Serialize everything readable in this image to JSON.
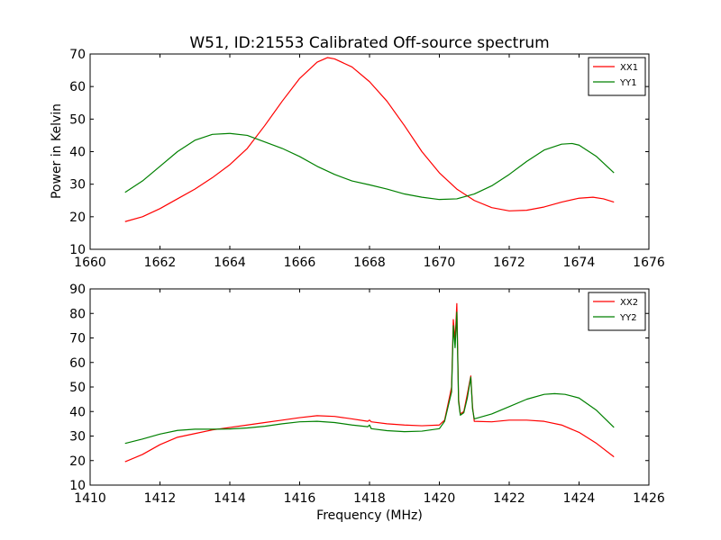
{
  "chart_data": [
    {
      "type": "line",
      "title": "W51, ID:21553 Calibrated Off-source spectrum",
      "xlabel": "",
      "ylabel": "Power in Kelvin",
      "xlim": [
        1660,
        1676
      ],
      "ylim": [
        10,
        70
      ],
      "xticks": [
        "1660",
        "1662",
        "1664",
        "1666",
        "1668",
        "1670",
        "1672",
        "1674",
        "1676"
      ],
      "yticks": [
        "10",
        "20",
        "30",
        "40",
        "50",
        "60",
        "70"
      ],
      "legend_position": "top-right",
      "grid": false,
      "series": [
        {
          "name": "XX1",
          "color": "#ff0000",
          "x": [
            1661.0,
            1661.5,
            1662.0,
            1662.5,
            1663.0,
            1663.5,
            1664.0,
            1664.5,
            1665.0,
            1665.5,
            1666.0,
            1666.5,
            1666.8,
            1667.0,
            1667.5,
            1668.0,
            1668.5,
            1669.0,
            1669.5,
            1670.0,
            1670.5,
            1671.0,
            1671.5,
            1672.0,
            1672.5,
            1673.0,
            1673.5,
            1674.0,
            1674.4,
            1674.7,
            1675.0
          ],
          "y": [
            18.5,
            20.0,
            22.5,
            25.5,
            28.5,
            32.0,
            36.0,
            41.0,
            48.0,
            55.5,
            62.5,
            67.5,
            68.9,
            68.5,
            66.0,
            61.5,
            55.5,
            48.0,
            40.0,
            33.5,
            28.5,
            25.0,
            22.8,
            21.8,
            22.0,
            23.0,
            24.5,
            25.7,
            26.0,
            25.5,
            24.5
          ]
        },
        {
          "name": "YY1",
          "color": "#008000",
          "x": [
            1661.0,
            1661.5,
            1662.0,
            1662.5,
            1663.0,
            1663.5,
            1664.0,
            1664.5,
            1665.0,
            1665.5,
            1666.0,
            1666.5,
            1667.0,
            1667.5,
            1668.0,
            1668.5,
            1669.0,
            1669.5,
            1670.0,
            1670.5,
            1671.0,
            1671.5,
            1672.0,
            1672.5,
            1673.0,
            1673.5,
            1673.8,
            1674.0,
            1674.5,
            1675.0
          ],
          "y": [
            27.5,
            31.0,
            35.5,
            40.0,
            43.5,
            45.3,
            45.6,
            45.0,
            43.0,
            41.0,
            38.5,
            35.5,
            33.0,
            31.0,
            29.8,
            28.5,
            27.0,
            26.0,
            25.3,
            25.5,
            27.0,
            29.5,
            33.0,
            37.0,
            40.5,
            42.3,
            42.5,
            42.0,
            38.5,
            33.5
          ]
        }
      ]
    },
    {
      "type": "line",
      "title": "",
      "xlabel": "Frequency (MHz)",
      "ylabel": "",
      "xlim": [
        1410,
        1426
      ],
      "ylim": [
        10,
        90
      ],
      "xticks": [
        "1410",
        "1412",
        "1414",
        "1416",
        "1418",
        "1420",
        "1422",
        "1424",
        "1426"
      ],
      "yticks": [
        "10",
        "20",
        "30",
        "40",
        "50",
        "60",
        "70",
        "80",
        "90"
      ],
      "legend_position": "top-right",
      "grid": false,
      "series": [
        {
          "name": "XX2",
          "color": "#ff0000",
          "x": [
            1411.0,
            1411.5,
            1412.0,
            1412.5,
            1413.0,
            1413.5,
            1414.0,
            1414.5,
            1415.0,
            1415.5,
            1416.0,
            1416.5,
            1417.0,
            1417.5,
            1417.95,
            1418.0,
            1418.05,
            1418.5,
            1419.0,
            1419.5,
            1420.0,
            1420.15,
            1420.3,
            1420.35,
            1420.4,
            1420.45,
            1420.5,
            1420.55,
            1420.6,
            1420.7,
            1420.8,
            1420.9,
            1420.95,
            1421.0,
            1421.5,
            1422.0,
            1422.5,
            1423.0,
            1423.5,
            1424.0,
            1424.5,
            1425.0
          ],
          "y": [
            19.5,
            22.5,
            26.5,
            29.5,
            31.0,
            32.5,
            33.5,
            34.5,
            35.5,
            36.5,
            37.5,
            38.3,
            38.0,
            37.0,
            36.0,
            36.5,
            35.8,
            35.0,
            34.5,
            34.2,
            34.5,
            36.5,
            46.5,
            50.0,
            77.5,
            69.0,
            84.0,
            45.0,
            39.0,
            40.0,
            47.0,
            54.5,
            42.0,
            36.0,
            35.8,
            36.5,
            36.5,
            36.0,
            34.5,
            31.5,
            27.0,
            21.5
          ]
        },
        {
          "name": "YY2",
          "color": "#008000",
          "x": [
            1411.0,
            1411.5,
            1412.0,
            1412.5,
            1413.0,
            1413.5,
            1414.0,
            1414.5,
            1415.0,
            1415.5,
            1416.0,
            1416.5,
            1417.0,
            1417.5,
            1417.95,
            1418.0,
            1418.05,
            1418.5,
            1419.0,
            1419.5,
            1420.0,
            1420.15,
            1420.3,
            1420.35,
            1420.4,
            1420.45,
            1420.5,
            1420.55,
            1420.6,
            1420.7,
            1420.8,
            1420.9,
            1420.95,
            1421.0,
            1421.5,
            1422.0,
            1422.5,
            1423.0,
            1423.3,
            1423.6,
            1424.0,
            1424.5,
            1425.0
          ],
          "y": [
            27.0,
            28.8,
            30.8,
            32.3,
            32.8,
            32.8,
            32.9,
            33.3,
            34.0,
            35.0,
            35.8,
            36.0,
            35.5,
            34.5,
            33.8,
            34.5,
            33.0,
            32.2,
            31.8,
            32.0,
            33.0,
            36.0,
            45.0,
            48.0,
            75.0,
            66.0,
            80.5,
            44.0,
            38.5,
            39.5,
            45.5,
            54.0,
            41.0,
            37.0,
            39.0,
            42.0,
            45.0,
            47.0,
            47.3,
            47.0,
            45.5,
            40.5,
            33.5
          ]
        }
      ]
    }
  ]
}
